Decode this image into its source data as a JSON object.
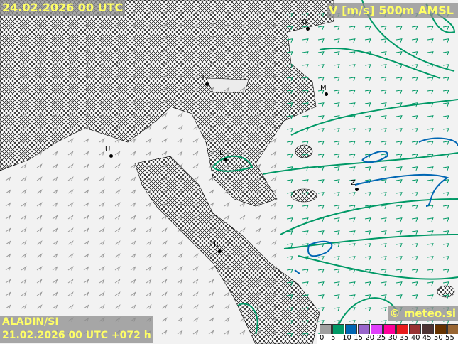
{
  "header": {
    "valid_time": "24.02.2026 00 UTC",
    "parameter": "V [m/s] 500m AMSL"
  },
  "footer": {
    "model": "ALADIN/SI",
    "run": "21.02.2026 00 UTC +072 h",
    "copyright": "© meteo.si"
  },
  "cities": [
    {
      "label": "G"
    },
    {
      "label": "T"
    },
    {
      "label": "M"
    },
    {
      "label": "U"
    },
    {
      "label": "L"
    },
    {
      "label": "Z"
    },
    {
      "label": "R"
    }
  ],
  "legend": {
    "ticks": [
      "0",
      "5",
      "10",
      "15",
      "20",
      "25",
      "30",
      "35",
      "40",
      "45",
      "50",
      "55"
    ],
    "colors": [
      "#a0a0a0",
      "#009966",
      "#0066b3",
      "#9966cc",
      "#e040fb",
      "#ff0099",
      "#e81c1c",
      "#993333",
      "#4d3333",
      "#663300",
      "#996633",
      "#b3996b"
    ]
  },
  "contour_colors": {
    "5": "#009966",
    "10": "#0066b3"
  }
}
